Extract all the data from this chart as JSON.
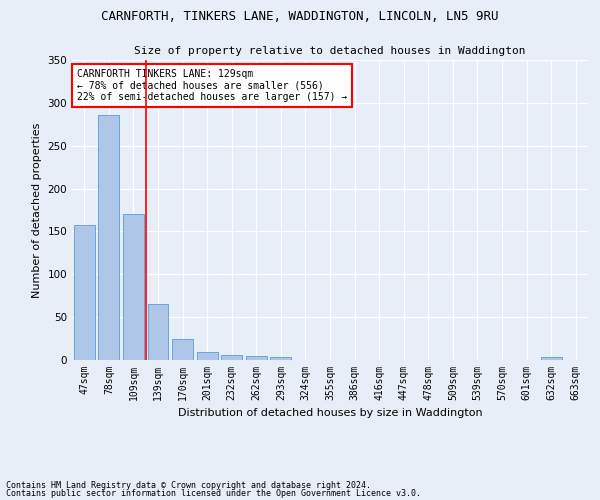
{
  "title1": "CARNFORTH, TINKERS LANE, WADDINGTON, LINCOLN, LN5 9RU",
  "title2": "Size of property relative to detached houses in Waddington",
  "xlabel": "Distribution of detached houses by size in Waddington",
  "ylabel": "Number of detached properties",
  "footer1": "Contains HM Land Registry data © Crown copyright and database right 2024.",
  "footer2": "Contains public sector information licensed under the Open Government Licence v3.0.",
  "categories": [
    "47sqm",
    "78sqm",
    "109sqm",
    "139sqm",
    "170sqm",
    "201sqm",
    "232sqm",
    "262sqm",
    "293sqm",
    "324sqm",
    "355sqm",
    "386sqm",
    "416sqm",
    "447sqm",
    "478sqm",
    "509sqm",
    "539sqm",
    "570sqm",
    "601sqm",
    "632sqm",
    "663sqm"
  ],
  "values": [
    157,
    286,
    170,
    65,
    25,
    9,
    6,
    5,
    3,
    0,
    0,
    0,
    0,
    0,
    0,
    0,
    0,
    0,
    0,
    3,
    0
  ],
  "bar_color": "#aec6e8",
  "bar_edge_color": "#5a9bd5",
  "vline_color": "red",
  "vline_pos": 2.5,
  "annotation_title": "CARNFORTH TINKERS LANE: 129sqm",
  "annotation_line1": "← 78% of detached houses are smaller (556)",
  "annotation_line2": "22% of semi-detached houses are larger (157) →",
  "annotation_box_color": "white",
  "annotation_box_edge": "red",
  "ylim": [
    0,
    350
  ],
  "yticks": [
    0,
    50,
    100,
    150,
    200,
    250,
    300,
    350
  ],
  "bg_color": "#e8eef8",
  "grid_color": "white",
  "title_fontsize": 9,
  "subtitle_fontsize": 8,
  "ylabel_fontsize": 8,
  "xlabel_fontsize": 8,
  "tick_fontsize": 7,
  "footer_fontsize": 6,
  "ann_fontsize": 7
}
